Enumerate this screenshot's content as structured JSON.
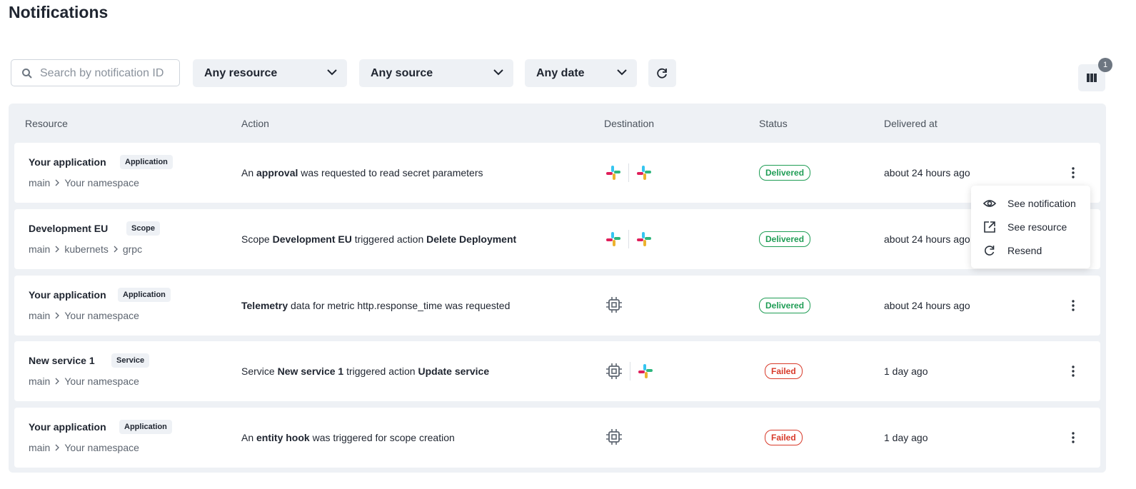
{
  "header": {
    "title": "Notifications"
  },
  "toolbar": {
    "search_placeholder": "Search by notification ID",
    "filters": [
      "Any resource",
      "Any source",
      "Any date"
    ],
    "columns_badge": "1"
  },
  "table": {
    "columns": [
      "Resource",
      "Action",
      "Destination",
      "Status",
      "Delivered at"
    ],
    "rows": [
      {
        "resource": "Your application",
        "tag": "Application",
        "path": [
          "main",
          "Your namespace"
        ],
        "action": [
          {
            "text": "An ",
            "bold": false
          },
          {
            "text": "approval",
            "bold": true
          },
          {
            "text": " was requested to read secret parameters",
            "bold": false
          }
        ],
        "destinations": [
          "slack",
          "slack"
        ],
        "status": "Delivered",
        "tone": "success",
        "delivered_at": "about 24 hours ago"
      },
      {
        "resource": "Development EU",
        "tag": "Scope",
        "path": [
          "main",
          "kubernets",
          "grpc"
        ],
        "action": [
          {
            "text": "Scope ",
            "bold": false
          },
          {
            "text": "Development EU",
            "bold": true
          },
          {
            "text": " triggered action ",
            "bold": false
          },
          {
            "text": "Delete Deployment",
            "bold": true
          }
        ],
        "destinations": [
          "slack",
          "slack"
        ],
        "status": "Delivered",
        "tone": "success",
        "delivered_at": "about 24 hours ago"
      },
      {
        "resource": "Your application",
        "tag": "Application",
        "path": [
          "main",
          "Your namespace"
        ],
        "action": [
          {
            "text": "Telemetry",
            "bold": true
          },
          {
            "text": " data for metric http.response_time was requested",
            "bold": false
          }
        ],
        "destinations": [
          "chip"
        ],
        "status": "Delivered",
        "tone": "success",
        "delivered_at": "about 24 hours ago"
      },
      {
        "resource": "New service 1",
        "tag": "Service",
        "path": [
          "main",
          "Your namespace"
        ],
        "action": [
          {
            "text": "Service ",
            "bold": false
          },
          {
            "text": "New service 1",
            "bold": true
          },
          {
            "text": " triggered action ",
            "bold": false
          },
          {
            "text": "Update service",
            "bold": true
          }
        ],
        "destinations": [
          "chip",
          "slack"
        ],
        "status": "Failed",
        "tone": "error",
        "delivered_at": "1 day ago"
      },
      {
        "resource": "Your application",
        "tag": "Application",
        "path": [
          "main",
          "Your namespace"
        ],
        "action": [
          {
            "text": "An ",
            "bold": false
          },
          {
            "text": "entity hook",
            "bold": true
          },
          {
            "text": " was triggered for scope creation",
            "bold": false
          }
        ],
        "destinations": [
          "chip"
        ],
        "status": "Failed",
        "tone": "error",
        "delivered_at": "1 day ago"
      }
    ]
  },
  "menu": {
    "items": [
      "See notification",
      "See resource",
      "Resend"
    ]
  }
}
